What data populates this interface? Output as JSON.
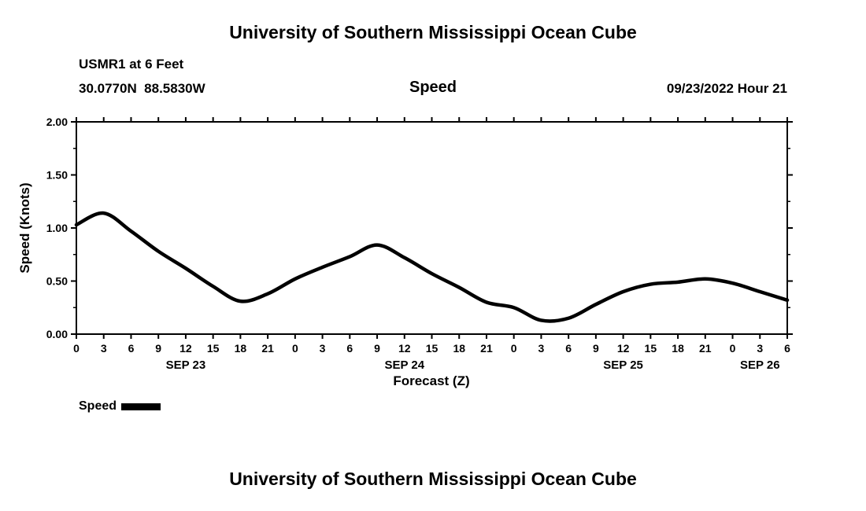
{
  "titles": {
    "top": "University of Southern Mississippi Ocean Cube",
    "bottom": "University of Southern Mississippi Ocean Cube"
  },
  "header": {
    "station": "USMR1 at 6 Feet",
    "coords": "30.0770N  88.5830W",
    "center": "Speed",
    "datetime": "09/23/2022 Hour 21"
  },
  "legend": {
    "label": "Speed",
    "swatch_color": "#000000"
  },
  "chart_data": {
    "type": "line",
    "title": "Speed",
    "xlabel": "Forecast (Z)",
    "ylabel": "Speed (Knots)",
    "ylim": [
      0.0,
      2.0
    ],
    "y_ticks": [
      0.0,
      0.5,
      1.0,
      1.5,
      2.0
    ],
    "y_tick_labels": [
      "0.00",
      "0.50",
      "1.00",
      "1.50",
      "2.00"
    ],
    "y_minor_step": 0.25,
    "x_hours": [
      0,
      3,
      6,
      9,
      12,
      15,
      18,
      21,
      24,
      27,
      30,
      33,
      36,
      39,
      42,
      45,
      48,
      51,
      54,
      57,
      60,
      63,
      66,
      69,
      72,
      75,
      78
    ],
    "x_tick_labels": [
      "0",
      "3",
      "6",
      "9",
      "12",
      "15",
      "18",
      "21",
      "0",
      "3",
      "6",
      "9",
      "12",
      "15",
      "18",
      "21",
      "0",
      "3",
      "6",
      "9",
      "12",
      "15",
      "18",
      "21",
      "0",
      "3",
      "6"
    ],
    "day_labels": [
      {
        "label": "SEP 23",
        "t": 12
      },
      {
        "label": "SEP 24",
        "t": 36
      },
      {
        "label": "SEP 25",
        "t": 60
      },
      {
        "label": "SEP 26",
        "t": 75
      }
    ],
    "grid": false,
    "legend_position": "below-left",
    "series": [
      {
        "name": "Speed",
        "color": "#000000",
        "values": [
          1.03,
          1.14,
          0.97,
          0.78,
          0.62,
          0.45,
          0.31,
          0.38,
          0.52,
          0.63,
          0.73,
          0.84,
          0.72,
          0.57,
          0.44,
          0.3,
          0.25,
          0.13,
          0.15,
          0.28,
          0.4,
          0.47,
          0.49,
          0.52,
          0.48,
          0.4,
          0.32
        ]
      }
    ]
  }
}
